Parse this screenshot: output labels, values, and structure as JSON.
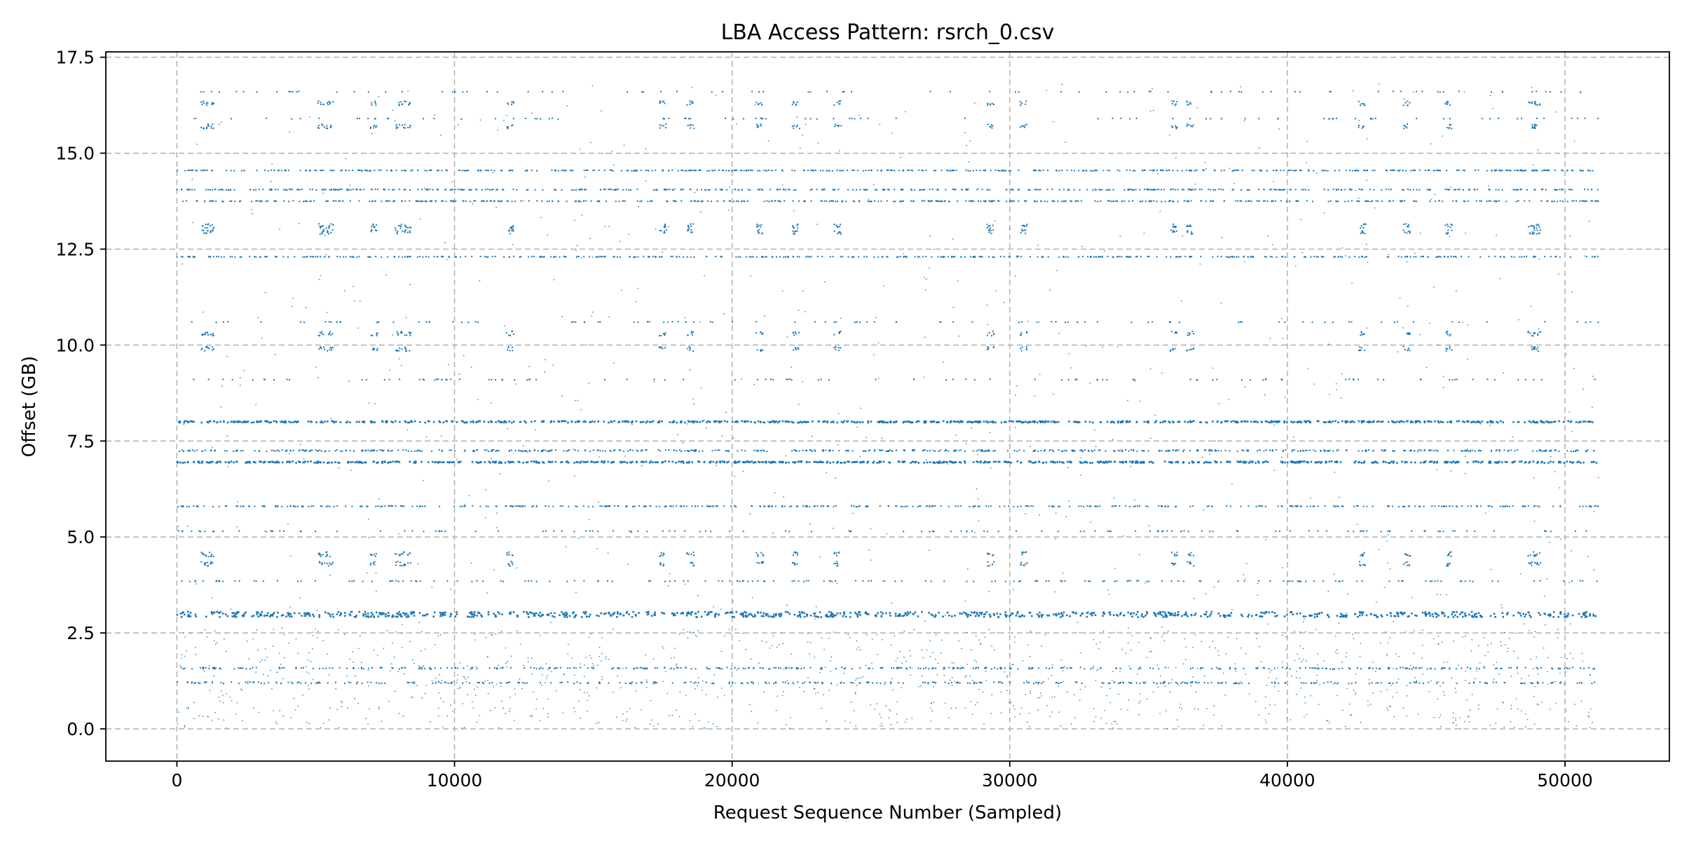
{
  "chart_data": {
    "type": "scatter",
    "title": "LBA Access Pattern: rsrch_0.csv",
    "xlabel": "Request Sequence Number (Sampled)",
    "ylabel": "Offset (GB)",
    "xlim": [
      -2560,
      53760
    ],
    "ylim": [
      -0.84,
      17.64
    ],
    "x_ticks": [
      0,
      10000,
      20000,
      30000,
      40000,
      50000
    ],
    "x_tick_labels": [
      "0",
      "10000",
      "20000",
      "30000",
      "40000",
      "50000"
    ],
    "y_ticks": [
      0.0,
      2.5,
      5.0,
      7.5,
      10.0,
      12.5,
      15.0,
      17.5
    ],
    "y_tick_labels": [
      "0.0",
      "2.5",
      "5.0",
      "7.5",
      "10.0",
      "12.5",
      "15.0",
      "17.5"
    ],
    "grid": true,
    "marker_color": "#1f77b4",
    "x_range": [
      0,
      51200
    ],
    "bands": [
      {
        "offset_gb": 2.98,
        "density": 1.0,
        "spread_gb": 0.07
      },
      {
        "offset_gb": 8.0,
        "density": 0.85,
        "spread_gb": 0.02
      },
      {
        "offset_gb": 6.95,
        "density": 0.85,
        "spread_gb": 0.02
      },
      {
        "offset_gb": 7.25,
        "density": 0.65,
        "spread_gb": 0.02
      },
      {
        "offset_gb": 14.55,
        "density": 0.6,
        "spread_gb": 0.01
      },
      {
        "offset_gb": 14.05,
        "density": 0.55,
        "spread_gb": 0.01
      },
      {
        "offset_gb": 13.75,
        "density": 0.55,
        "spread_gb": 0.01
      },
      {
        "offset_gb": 12.3,
        "density": 0.5,
        "spread_gb": 0.01
      },
      {
        "offset_gb": 5.8,
        "density": 0.5,
        "spread_gb": 0.01
      },
      {
        "offset_gb": 1.58,
        "density": 0.45,
        "spread_gb": 0.02
      },
      {
        "offset_gb": 1.2,
        "density": 0.4,
        "spread_gb": 0.02
      },
      {
        "offset_gb": 3.85,
        "density": 0.2,
        "spread_gb": 0.01
      },
      {
        "offset_gb": 5.15,
        "density": 0.15,
        "spread_gb": 0.01
      },
      {
        "offset_gb": 9.1,
        "density": 0.12,
        "spread_gb": 0.01
      },
      {
        "offset_gb": 10.6,
        "density": 0.12,
        "spread_gb": 0.01
      },
      {
        "offset_gb": 15.9,
        "density": 0.1,
        "spread_gb": 0.01
      },
      {
        "offset_gb": 16.6,
        "density": 0.1,
        "spread_gb": 0.01
      }
    ],
    "burst_columns_x": [
      1000,
      1200,
      5200,
      5500,
      7100,
      8000,
      8300,
      12000,
      17500,
      18500,
      21000,
      22300,
      23800,
      29300,
      30500,
      35900,
      36500,
      42700,
      44300,
      45800,
      48800,
      49000
    ],
    "burst_offsets_gb": [
      4.3,
      4.55,
      9.9,
      10.3,
      12.95,
      13.1,
      15.7,
      16.3
    ]
  }
}
